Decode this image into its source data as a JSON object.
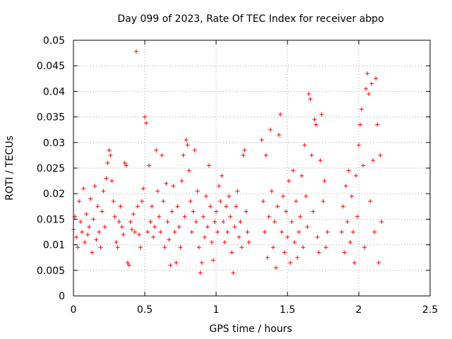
{
  "chart_data": {
    "type": "scatter",
    "title": "Day 099 of 2023, Rate Of TEC Index for receiver abpo",
    "xlabel": "GPS time / hours",
    "ylabel": "ROTI / TECUs",
    "xlim": [
      0,
      2.5
    ],
    "ylim": [
      0,
      0.05
    ],
    "x_ticks": [
      "0",
      "0.5",
      "1",
      "1.5",
      "2",
      "2.5"
    ],
    "y_ticks": [
      "0",
      "0.005",
      "0.01",
      "0.015",
      "0.02",
      "0.025",
      "0.03",
      "0.035",
      "0.04",
      "0.045",
      "0.05"
    ],
    "grid": true,
    "marker": "+",
    "marker_color": "#ff0000",
    "series": [
      {
        "points": [
          [
            0.0,
            0.013
          ],
          [
            0.01,
            0.0155
          ],
          [
            0.02,
            0.0115
          ],
          [
            0.03,
            0.0095
          ],
          [
            0.04,
            0.0185
          ],
          [
            0.05,
            0.0145
          ],
          [
            0.06,
            0.0125
          ],
          [
            0.07,
            0.021
          ],
          [
            0.08,
            0.0105
          ],
          [
            0.09,
            0.016
          ],
          [
            0.1,
            0.012
          ],
          [
            0.11,
            0.0135
          ],
          [
            0.12,
            0.019
          ],
          [
            0.13,
            0.0085
          ],
          [
            0.14,
            0.015
          ],
          [
            0.15,
            0.0215
          ],
          [
            0.16,
            0.011
          ],
          [
            0.17,
            0.0175
          ],
          [
            0.18,
            0.0125
          ],
          [
            0.19,
            0.0095
          ],
          [
            0.2,
            0.0165
          ],
          [
            0.21,
            0.0205
          ],
          [
            0.22,
            0.0135
          ],
          [
            0.23,
            0.023
          ],
          [
            0.24,
            0.026
          ],
          [
            0.25,
            0.0285
          ],
          [
            0.26,
            0.0275
          ],
          [
            0.27,
            0.0225
          ],
          [
            0.28,
            0.0185
          ],
          [
            0.29,
            0.0155
          ],
          [
            0.3,
            0.0105
          ],
          [
            0.31,
            0.0095
          ],
          [
            0.32,
            0.0145
          ],
          [
            0.33,
            0.0175
          ],
          [
            0.34,
            0.0135
          ],
          [
            0.35,
            0.012
          ],
          [
            0.36,
            0.026
          ],
          [
            0.37,
            0.0255
          ],
          [
            0.38,
            0.0065
          ],
          [
            0.39,
            0.006
          ],
          [
            0.4,
            0.0145
          ],
          [
            0.41,
            0.013
          ],
          [
            0.42,
            0.016
          ],
          [
            0.43,
            0.0125
          ],
          [
            0.44,
            0.0478
          ],
          [
            0.45,
            0.0175
          ],
          [
            0.46,
            0.012
          ],
          [
            0.47,
            0.0095
          ],
          [
            0.48,
            0.0185
          ],
          [
            0.49,
            0.021
          ],
          [
            0.5,
            0.035
          ],
          [
            0.51,
            0.0338
          ],
          [
            0.52,
            0.0125
          ],
          [
            0.53,
            0.0255
          ],
          [
            0.54,
            0.0145
          ],
          [
            0.55,
            0.0175
          ],
          [
            0.56,
            0.0115
          ],
          [
            0.57,
            0.0135
          ],
          [
            0.58,
            0.0285
          ],
          [
            0.59,
            0.0205
          ],
          [
            0.6,
            0.0155
          ],
          [
            0.61,
            0.0125
          ],
          [
            0.62,
            0.0275
          ],
          [
            0.63,
            0.0185
          ],
          [
            0.64,
            0.0095
          ],
          [
            0.65,
            0.022
          ],
          [
            0.66,
            0.0145
          ],
          [
            0.67,
            0.011
          ],
          [
            0.68,
            0.006
          ],
          [
            0.69,
            0.0165
          ],
          [
            0.7,
            0.0215
          ],
          [
            0.71,
            0.0125
          ],
          [
            0.72,
            0.0065
          ],
          [
            0.73,
            0.0175
          ],
          [
            0.74,
            0.0135
          ],
          [
            0.75,
            0.0095
          ],
          [
            0.76,
            0.0225
          ],
          [
            0.77,
            0.0275
          ],
          [
            0.78,
            0.0155
          ],
          [
            0.79,
            0.0305
          ],
          [
            0.8,
            0.0295
          ],
          [
            0.81,
            0.0245
          ],
          [
            0.82,
            0.0185
          ],
          [
            0.83,
            0.0125
          ],
          [
            0.84,
            0.0165
          ],
          [
            0.85,
            0.0285
          ],
          [
            0.86,
            0.0145
          ],
          [
            0.87,
            0.0205
          ],
          [
            0.88,
            0.0095
          ],
          [
            0.89,
            0.0045
          ],
          [
            0.9,
            0.0065
          ],
          [
            0.91,
            0.0155
          ],
          [
            0.92,
            0.0115
          ],
          [
            0.93,
            0.0195
          ],
          [
            0.94,
            0.0135
          ],
          [
            0.95,
            0.0255
          ],
          [
            0.96,
            0.0175
          ],
          [
            0.97,
            0.0105
          ],
          [
            0.98,
            0.007
          ],
          [
            0.99,
            0.0145
          ],
          [
            1.0,
            0.0165
          ],
          [
            1.01,
            0.0125
          ],
          [
            1.02,
            0.0215
          ],
          [
            1.03,
            0.0185
          ],
          [
            1.04,
            0.0235
          ],
          [
            1.05,
            0.0145
          ],
          [
            1.06,
            0.0105
          ],
          [
            1.07,
            0.0175
          ],
          [
            1.08,
            0.0125
          ],
          [
            1.09,
            0.0195
          ],
          [
            1.1,
            0.0155
          ],
          [
            1.11,
            0.0085
          ],
          [
            1.12,
            0.0045
          ],
          [
            1.13,
            0.0135
          ],
          [
            1.14,
            0.0175
          ],
          [
            1.15,
            0.0205
          ],
          [
            1.16,
            0.0115
          ],
          [
            1.17,
            0.0145
          ],
          [
            1.18,
            0.0095
          ],
          [
            1.19,
            0.0275
          ],
          [
            1.2,
            0.0285
          ],
          [
            1.21,
            0.0165
          ],
          [
            1.22,
            0.0125
          ],
          [
            1.23,
            0.0105
          ],
          [
            1.32,
            0.0305
          ],
          [
            1.33,
            0.0185
          ],
          [
            1.34,
            0.0125
          ],
          [
            1.35,
            0.0275
          ],
          [
            1.36,
            0.0075
          ],
          [
            1.37,
            0.0155
          ],
          [
            1.38,
            0.0325
          ],
          [
            1.39,
            0.0205
          ],
          [
            1.4,
            0.0095
          ],
          [
            1.41,
            0.0145
          ],
          [
            1.42,
            0.0055
          ],
          [
            1.43,
            0.0175
          ],
          [
            1.44,
            0.0315
          ],
          [
            1.45,
            0.0355
          ],
          [
            1.46,
            0.0125
          ],
          [
            1.47,
            0.0195
          ],
          [
            1.48,
            0.0085
          ],
          [
            1.49,
            0.0165
          ],
          [
            1.5,
            0.0115
          ],
          [
            1.51,
            0.0225
          ],
          [
            1.52,
            0.0065
          ],
          [
            1.53,
            0.0145
          ],
          [
            1.54,
            0.0245
          ],
          [
            1.55,
            0.0105
          ],
          [
            1.56,
            0.0185
          ],
          [
            1.57,
            0.0075
          ],
          [
            1.58,
            0.0125
          ],
          [
            1.59,
            0.0155
          ],
          [
            1.6,
            0.0235
          ],
          [
            1.61,
            0.0095
          ],
          [
            1.62,
            0.0295
          ],
          [
            1.63,
            0.0195
          ],
          [
            1.64,
            0.0135
          ],
          [
            1.65,
            0.0395
          ],
          [
            1.66,
            0.0385
          ],
          [
            1.67,
            0.0275
          ],
          [
            1.68,
            0.0165
          ],
          [
            1.69,
            0.0345
          ],
          [
            1.7,
            0.0335
          ],
          [
            1.71,
            0.0115
          ],
          [
            1.72,
            0.0085
          ],
          [
            1.73,
            0.0265
          ],
          [
            1.74,
            0.0355
          ],
          [
            1.75,
            0.0185
          ],
          [
            1.76,
            0.0225
          ],
          [
            1.77,
            0.0095
          ],
          [
            1.78,
            0.0125
          ],
          [
            1.88,
            0.0125
          ],
          [
            1.89,
            0.0175
          ],
          [
            1.9,
            0.0085
          ],
          [
            1.91,
            0.0215
          ],
          [
            1.92,
            0.0145
          ],
          [
            1.93,
            0.0245
          ],
          [
            1.94,
            0.0105
          ],
          [
            1.95,
            0.0195
          ],
          [
            1.96,
            0.0125
          ],
          [
            1.97,
            0.0065
          ],
          [
            1.98,
            0.0235
          ],
          [
            1.99,
            0.0155
          ],
          [
            2.0,
            0.0295
          ],
          [
            2.01,
            0.0335
          ],
          [
            2.02,
            0.0365
          ],
          [
            2.03,
            0.0255
          ],
          [
            2.04,
            0.0095
          ],
          [
            2.05,
            0.0405
          ],
          [
            2.06,
            0.0435
          ],
          [
            2.07,
            0.0395
          ],
          [
            2.08,
            0.0185
          ],
          [
            2.09,
            0.0415
          ],
          [
            2.1,
            0.0265
          ],
          [
            2.11,
            0.0125
          ],
          [
            2.12,
            0.0425
          ],
          [
            2.13,
            0.0335
          ],
          [
            2.14,
            0.0065
          ],
          [
            2.15,
            0.0275
          ],
          [
            2.16,
            0.0145
          ]
        ]
      }
    ]
  }
}
